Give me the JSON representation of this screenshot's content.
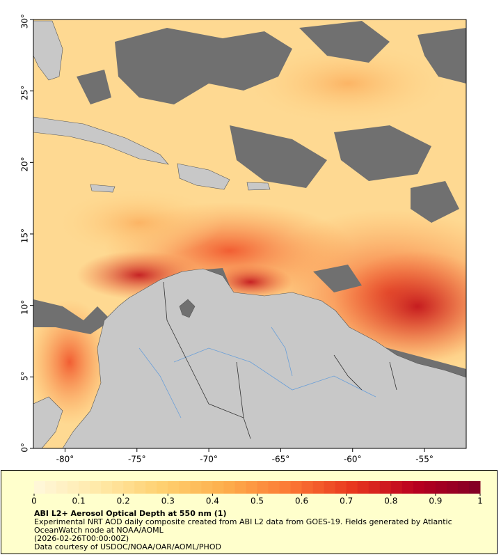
{
  "map": {
    "xlim": [
      -82.2,
      -52.1
    ],
    "ylim": [
      0,
      30
    ],
    "xticks": [
      {
        "value": -80,
        "label": "-80°"
      },
      {
        "value": -75,
        "label": "-75°"
      },
      {
        "value": -70,
        "label": "-70°"
      },
      {
        "value": -65,
        "label": "-65°"
      },
      {
        "value": -60,
        "label": "-60°"
      },
      {
        "value": -55,
        "label": "-55°"
      }
    ],
    "yticks": [
      {
        "value": 0,
        "label": "0°"
      },
      {
        "value": 5,
        "label": "5°"
      },
      {
        "value": 10,
        "label": "10°"
      },
      {
        "value": 15,
        "label": "15°"
      },
      {
        "value": 20,
        "label": "20°"
      },
      {
        "value": 25,
        "label": "25°"
      },
      {
        "value": 30,
        "label": "30°"
      }
    ]
  },
  "colorbar": {
    "range": [
      0,
      1
    ],
    "ticks": [
      0,
      0.1,
      0.2,
      0.3,
      0.4,
      0.5,
      0.6,
      0.7,
      0.8,
      0.9,
      1
    ],
    "colors": [
      "#fff8dc",
      "#ffe9a8",
      "#fed070",
      "#fdae4b",
      "#fc7a35",
      "#e8361e",
      "#b8001f",
      "#800026"
    ]
  },
  "title": "ABI L2+ Aerosol Optical Depth at 550 nm (1)",
  "caption": [
    "Experimental NRT AOD daily composite created from ABI L2 data from GOES-19. Fields generated by Atlantic OceanWatch node at NOAA/AOML",
    "(2026-02-26T00:00:00Z)",
    "Data courtesy of USDOC/NOAA/OAR/AOML/PHOD"
  ]
}
